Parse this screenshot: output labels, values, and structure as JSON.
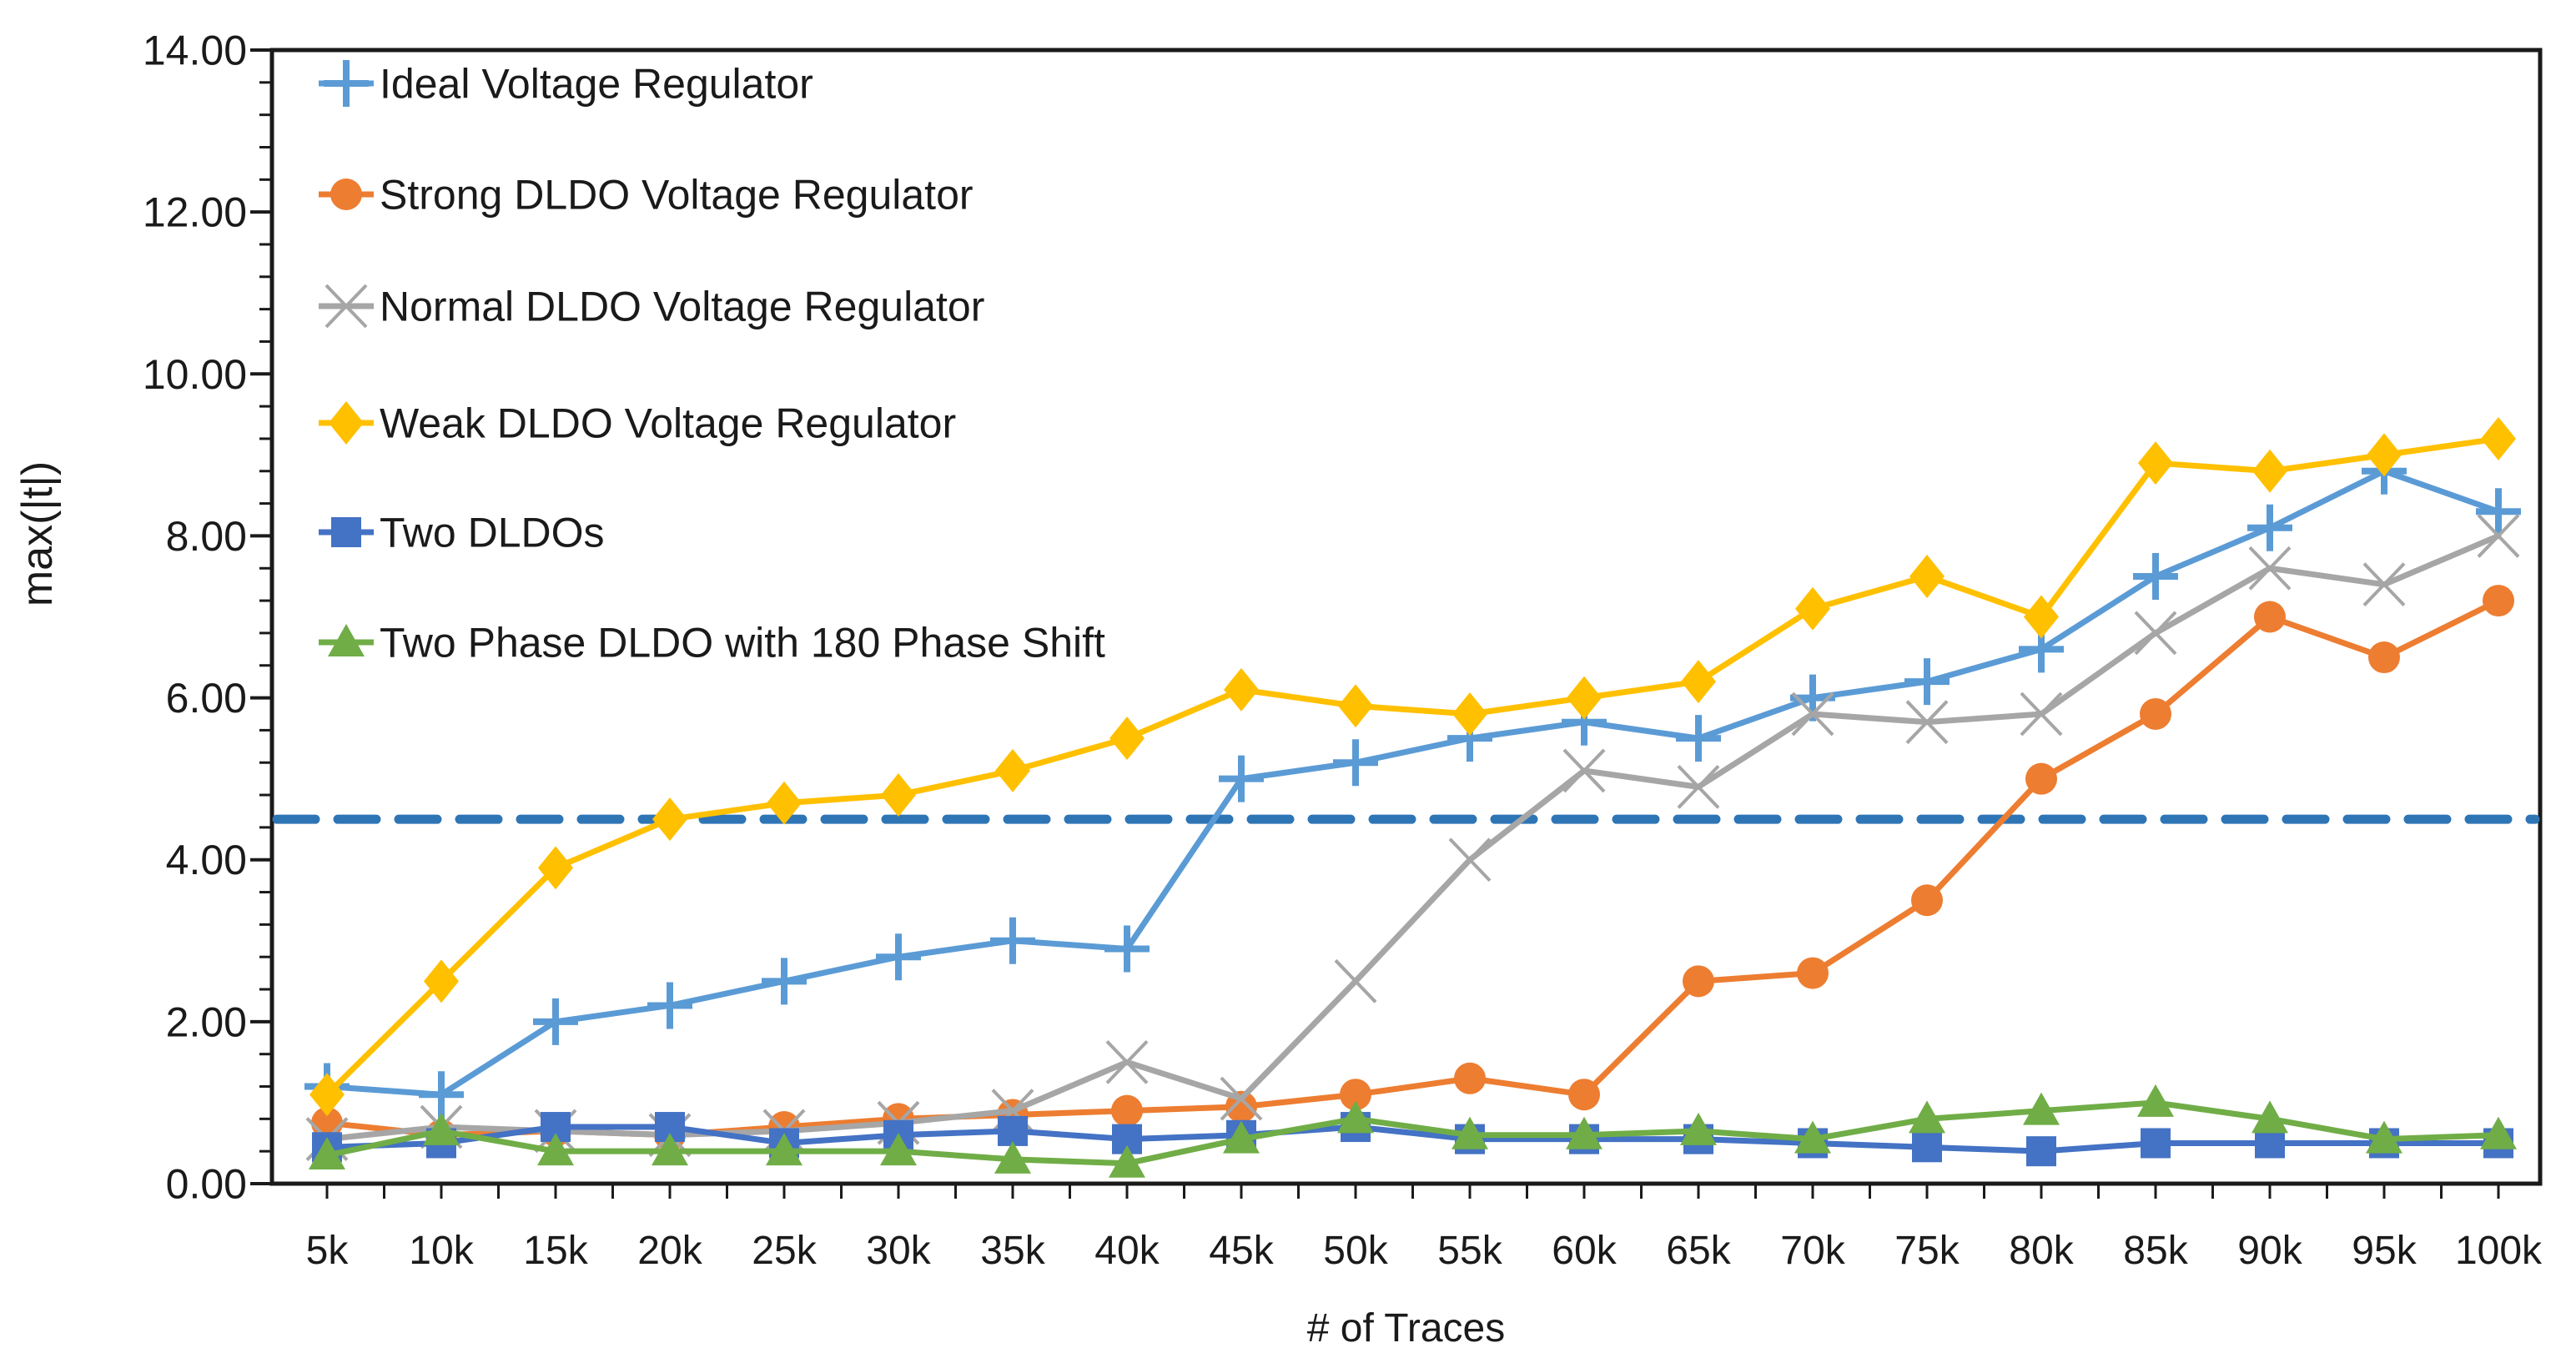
{
  "chart_data": {
    "type": "line",
    "title": "",
    "xlabel": "# of Traces",
    "ylabel": "max(|t|)",
    "ylim": [
      0,
      14
    ],
    "y_major_step": 2,
    "y_minor_step": 0.4,
    "y_tick_labels": [
      "0.00",
      "2.00",
      "4.00",
      "6.00",
      "8.00",
      "10.00",
      "12.00",
      "14.00"
    ],
    "grid": false,
    "legend_position": "top-left-inside",
    "categories": [
      "5k",
      "10k",
      "15k",
      "20k",
      "25k",
      "30k",
      "35k",
      "40k",
      "45k",
      "50k",
      "55k",
      "60k",
      "65k",
      "70k",
      "75k",
      "80k",
      "85k",
      "90k",
      "95k",
      "100k"
    ],
    "threshold": {
      "value": 4.5,
      "style": "dashed",
      "color": "#2E75B6"
    },
    "series": [
      {
        "name": "Ideal Voltage Regulator",
        "color": "#5B9BD5",
        "marker": "plus",
        "values": [
          1.2,
          1.1,
          2.0,
          2.2,
          2.5,
          2.8,
          3.0,
          2.9,
          5.0,
          5.2,
          5.5,
          5.7,
          5.5,
          6.0,
          6.2,
          6.6,
          7.5,
          8.1,
          8.8,
          8.3
        ]
      },
      {
        "name": "Strong DLDO Voltage Regulator",
        "color": "#ED7D31",
        "marker": "circle",
        "values": [
          0.75,
          0.6,
          0.65,
          0.6,
          0.7,
          0.8,
          0.85,
          0.9,
          0.95,
          1.1,
          1.3,
          1.1,
          2.5,
          2.6,
          3.5,
          5.0,
          5.8,
          7.0,
          6.5,
          7.2
        ]
      },
      {
        "name": "Normal DLDO Voltage Regulator",
        "color": "#A6A6A6",
        "marker": "x",
        "values": [
          0.55,
          0.7,
          0.65,
          0.6,
          0.65,
          0.75,
          0.9,
          1.5,
          1.05,
          2.5,
          4.0,
          5.1,
          4.9,
          5.8,
          5.7,
          5.8,
          6.8,
          7.6,
          7.4,
          8.0
        ]
      },
      {
        "name": "Weak DLDO Voltage Regulator",
        "color": "#FFC000",
        "marker": "diamond",
        "values": [
          1.1,
          2.5,
          3.9,
          4.5,
          4.7,
          4.8,
          5.1,
          5.5,
          6.1,
          5.9,
          5.8,
          6.0,
          6.2,
          7.1,
          7.5,
          7.0,
          8.9,
          8.8,
          9.0,
          9.2
        ]
      },
      {
        "name": "Two DLDOs",
        "color": "#4472C4",
        "marker": "square",
        "values": [
          0.45,
          0.5,
          0.7,
          0.7,
          0.5,
          0.6,
          0.65,
          0.55,
          0.6,
          0.7,
          0.55,
          0.55,
          0.55,
          0.5,
          0.45,
          0.4,
          0.5,
          0.5,
          0.5,
          0.5
        ]
      },
      {
        "name": "Two Phase DLDO with 180 Phase Shift",
        "color": "#70AD47",
        "marker": "triangle",
        "values": [
          0.35,
          0.65,
          0.4,
          0.4,
          0.4,
          0.4,
          0.3,
          0.25,
          0.55,
          0.8,
          0.6,
          0.6,
          0.65,
          0.55,
          0.8,
          0.9,
          1.0,
          0.8,
          0.55,
          0.6
        ]
      }
    ]
  }
}
